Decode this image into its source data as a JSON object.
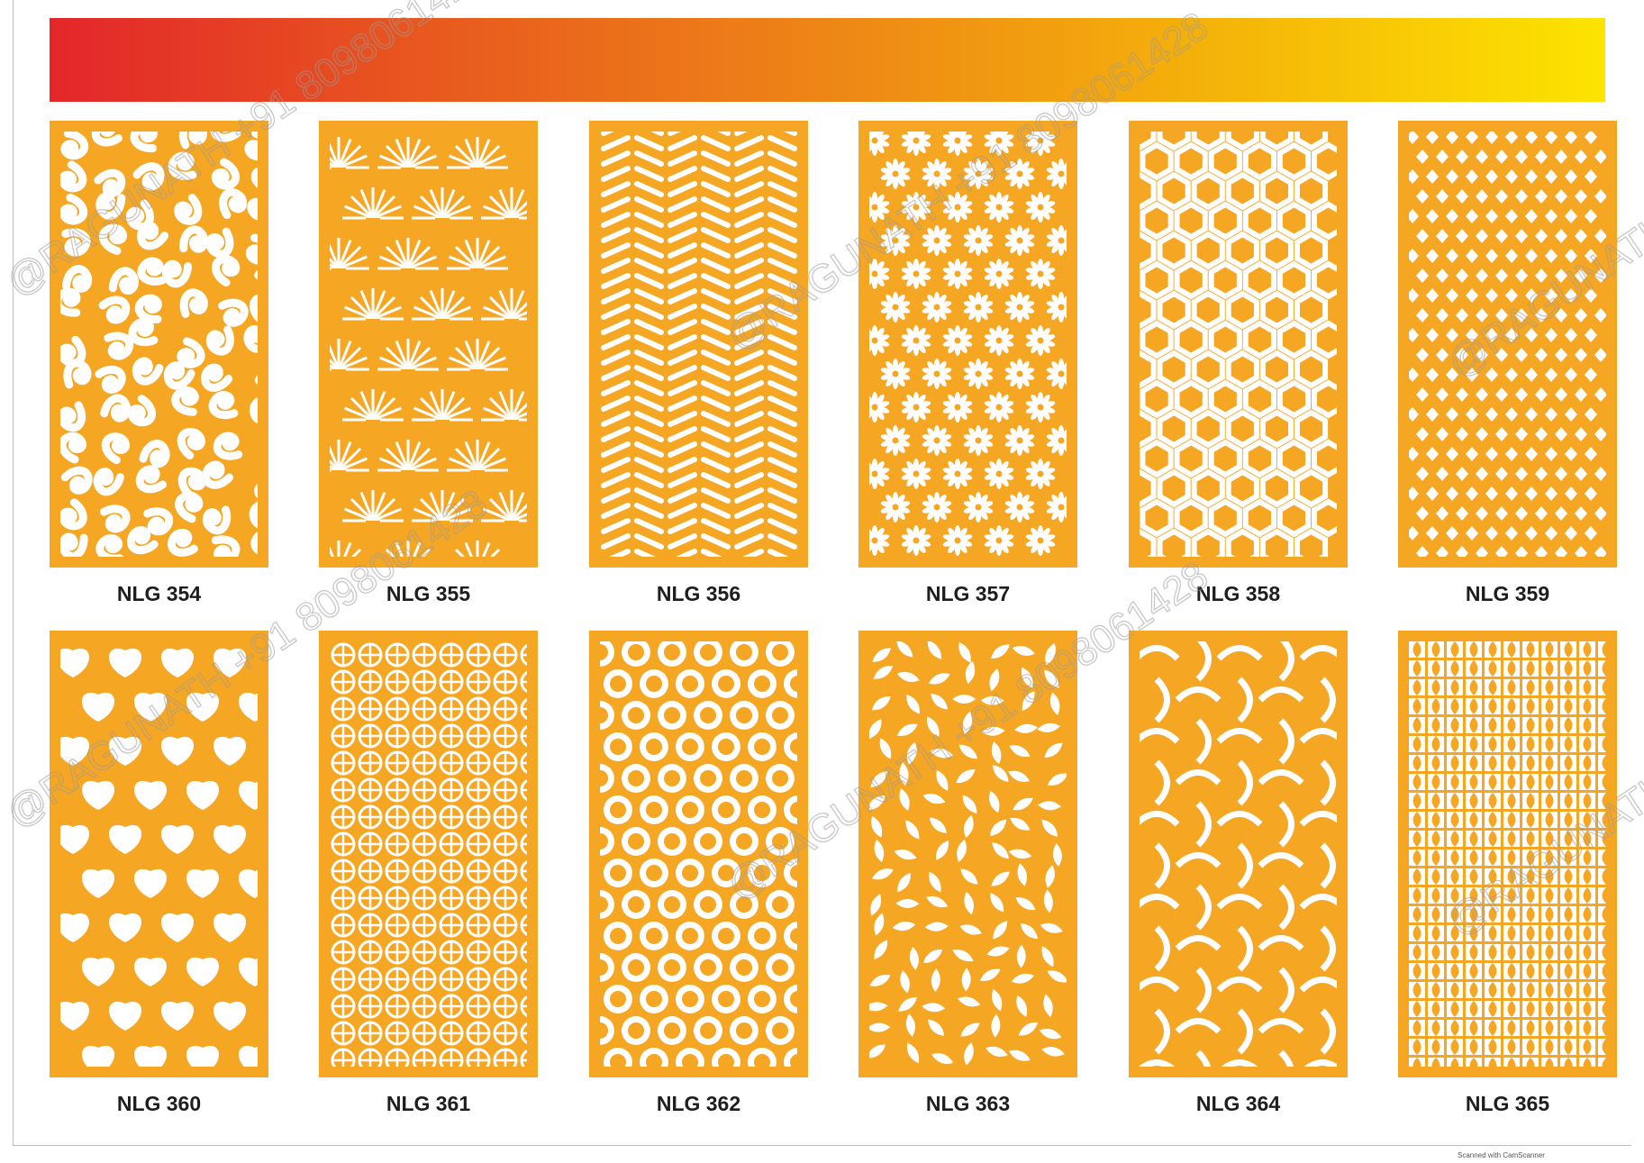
{
  "header": {
    "gradient": [
      "#e3262a",
      "#ef8f14",
      "#fce400"
    ]
  },
  "colors": {
    "panel_fill": "#f5a623",
    "panel_cutout": "#ffffff",
    "label": "#1e1e1e"
  },
  "panels": [
    {
      "code": "NLG 354",
      "pattern": "swirl-flora"
    },
    {
      "code": "NLG 355",
      "pattern": "fan-burst"
    },
    {
      "code": "NLG 356",
      "pattern": "herringbone"
    },
    {
      "code": "NLG 357",
      "pattern": "daisy"
    },
    {
      "code": "NLG 358",
      "pattern": "isometric-cubes"
    },
    {
      "code": "NLG 359",
      "pattern": "star-lattice"
    },
    {
      "code": "NLG 360",
      "pattern": "ivy-leaves"
    },
    {
      "code": "NLG 361",
      "pattern": "geometric-stars"
    },
    {
      "code": "NLG 362",
      "pattern": "interlocking-rings"
    },
    {
      "code": "NLG 363",
      "pattern": "scattered-leaves"
    },
    {
      "code": "NLG 364",
      "pattern": "wave-weave"
    },
    {
      "code": "NLG 365",
      "pattern": "ogee-grid"
    }
  ],
  "watermark": {
    "name": "@RAGUNATH",
    "phone": "+91 8098061428"
  },
  "footer": {
    "scanner_note": "Scanned with CamScanner"
  }
}
